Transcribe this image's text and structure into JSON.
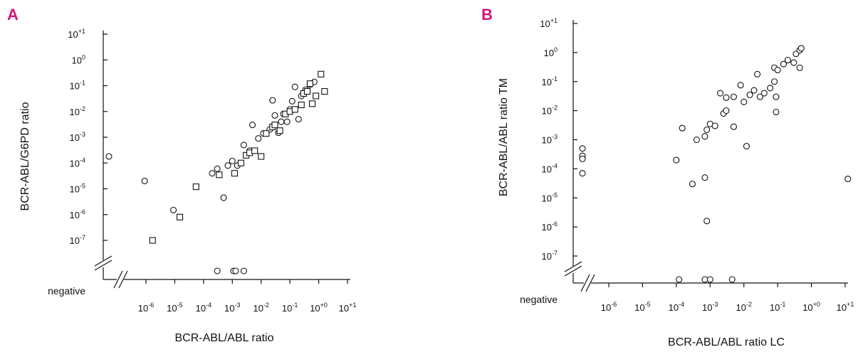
{
  "chart_data": [
    {
      "type": "scatter",
      "panel_label": "A",
      "panel_label_color": "#d4147a",
      "xlabel": "BCR-ABL/ABL ratio",
      "ylabel": "BCR-ABL/G6PD ratio",
      "x_scale": "log10",
      "y_scale": "log10",
      "x_ticks": [
        "10-6",
        "10-5",
        "10-4",
        "10-3",
        "10-2",
        "10-1",
        "10+0",
        "10+1"
      ],
      "y_ticks": [
        "10+1",
        "100",
        "10-1",
        "10-2",
        "10-3",
        "10-4",
        "10-5",
        "10-6",
        "10-7"
      ],
      "negative_label": "negative",
      "axis_break": true,
      "xlim": [
        "1e-6",
        "1e+1"
      ],
      "ylim": [
        "1e-7",
        "1e+1"
      ],
      "series": [
        {
          "marker": "circle",
          "points": [
            {
              "x": "negative",
              "y": 0.00018
            },
            {
              "x": 9e-07,
              "y": 2e-05
            },
            {
              "x": 9e-06,
              "y": 1.5e-06
            },
            {
              "x": 0.0002,
              "y": 4e-05
            },
            {
              "x": 0.0003,
              "y": 6e-05
            },
            {
              "x": 0.0005,
              "y": 4.5e-06
            },
            {
              "x": 0.0007,
              "y": 8e-05
            },
            {
              "x": 0.001,
              "y": 0.00012
            },
            {
              "x": 0.0015,
              "y": 8e-05
            },
            {
              "x": 0.0025,
              "y": 0.0005
            },
            {
              "x": 0.004,
              "y": 0.0003
            },
            {
              "x": 0.005,
              "y": 0.003
            },
            {
              "x": 0.008,
              "y": 0.0009
            },
            {
              "x": 0.012,
              "y": 0.0014
            },
            {
              "x": 0.02,
              "y": 0.002
            },
            {
              "x": 0.025,
              "y": 0.027
            },
            {
              "x": 0.03,
              "y": 0.007
            },
            {
              "x": 0.04,
              "y": 0.0015
            },
            {
              "x": 0.06,
              "y": 0.008
            },
            {
              "x": 0.08,
              "y": 0.004
            },
            {
              "x": 0.1,
              "y": 0.012
            },
            {
              "x": 0.12,
              "y": 0.025
            },
            {
              "x": 0.2,
              "y": 0.005
            },
            {
              "x": 0.25,
              "y": 0.04
            },
            {
              "x": 0.35,
              "y": 0.07
            },
            {
              "x": 0.5,
              "y": 0.11
            },
            {
              "x": 0.7,
              "y": 0.14
            },
            {
              "x": 0.15,
              "y": 0.09
            },
            {
              "x": 0.05,
              "y": 0.004
            },
            {
              "x": 0.0003,
              "y": "negative"
            },
            {
              "x": 0.0011,
              "y": "negative"
            },
            {
              "x": 0.0013,
              "y": "negative"
            },
            {
              "x": 0.0025,
              "y": "negative"
            }
          ]
        },
        {
          "marker": "square",
          "points": [
            {
              "x": 1.7e-06,
              "y": 1e-07
            },
            {
              "x": 1.5e-05,
              "y": 8e-07
            },
            {
              "x": 5.5e-05,
              "y": 1.2e-05
            },
            {
              "x": 0.00035,
              "y": 3.5e-05
            },
            {
              "x": 0.0012,
              "y": 4e-05
            },
            {
              "x": 0.002,
              "y": 0.0001
            },
            {
              "x": 0.003,
              "y": 0.0002
            },
            {
              "x": 0.004,
              "y": 0.00025
            },
            {
              "x": 0.006,
              "y": 0.0003
            },
            {
              "x": 0.01,
              "y": 0.00018
            },
            {
              "x": 0.015,
              "y": 0.0014
            },
            {
              "x": 0.025,
              "y": 0.0025
            },
            {
              "x": 0.03,
              "y": 0.003
            },
            {
              "x": 0.045,
              "y": 0.0018
            },
            {
              "x": 0.07,
              "y": 0.008
            },
            {
              "x": 0.1,
              "y": 0.01
            },
            {
              "x": 0.15,
              "y": 0.012
            },
            {
              "x": 0.25,
              "y": 0.018
            },
            {
              "x": 0.3,
              "y": 0.05
            },
            {
              "x": 0.4,
              "y": 0.06
            },
            {
              "x": 0.6,
              "y": 0.02
            },
            {
              "x": 0.8,
              "y": 0.04
            },
            {
              "x": 1.2,
              "y": 0.28
            },
            {
              "x": 1.6,
              "y": 0.06
            },
            {
              "x": 0.5,
              "y": 0.12
            }
          ]
        }
      ]
    },
    {
      "type": "scatter",
      "panel_label": "B",
      "panel_label_color": "#d4147a",
      "xlabel": "BCR-ABL/ABL ratio LC",
      "ylabel": "BCR-ABL/ABL ratio TM",
      "x_scale": "log10",
      "y_scale": "log10",
      "x_ticks": [
        "10-6",
        "10-5",
        "10-4",
        "10-3",
        "10-2",
        "10-1",
        "10+0",
        "10+1"
      ],
      "y_ticks": [
        "10+1",
        "100",
        "10-1",
        "10-2",
        "10-3",
        "10-4",
        "10-5",
        "10-6",
        "10-7"
      ],
      "negative_label": "negative",
      "axis_break": true,
      "xlim": [
        "1e-6",
        "1e+1"
      ],
      "ylim": [
        "1e-7",
        "1e+1"
      ],
      "series": [
        {
          "marker": "circle",
          "points": [
            {
              "x": "negative",
              "y": 0.0005
            },
            {
              "x": "negative",
              "y": 0.00028
            },
            {
              "x": "negative",
              "y": 0.00022
            },
            {
              "x": "negative",
              "y": 7e-05
            },
            {
              "x": 0.0001,
              "y": 0.0002
            },
            {
              "x": 0.00015,
              "y": 0.0025
            },
            {
              "x": 0.0003,
              "y": 3e-05
            },
            {
              "x": 0.0004,
              "y": 0.001
            },
            {
              "x": 0.0007,
              "y": 5e-05
            },
            {
              "x": 0.0008,
              "y": 1.6e-06
            },
            {
              "x": 0.0007,
              "y": 0.0013
            },
            {
              "x": 0.0008,
              "y": 0.0022
            },
            {
              "x": 0.001,
              "y": 0.0035
            },
            {
              "x": 0.0014,
              "y": 0.003
            },
            {
              "x": 0.0025,
              "y": 0.008
            },
            {
              "x": 0.003,
              "y": 0.01
            },
            {
              "x": 0.002,
              "y": 0.04
            },
            {
              "x": 0.003,
              "y": 0.028
            },
            {
              "x": 0.005,
              "y": 0.03
            },
            {
              "x": 0.005,
              "y": 0.0028
            },
            {
              "x": 0.012,
              "y": 0.0006
            },
            {
              "x": 0.01,
              "y": 0.02
            },
            {
              "x": 0.008,
              "y": 0.075
            },
            {
              "x": 0.015,
              "y": 0.035
            },
            {
              "x": 0.02,
              "y": 0.05
            },
            {
              "x": 0.025,
              "y": 0.18
            },
            {
              "x": 0.03,
              "y": 0.03
            },
            {
              "x": 0.04,
              "y": 0.04
            },
            {
              "x": 0.06,
              "y": 0.06
            },
            {
              "x": 0.08,
              "y": 0.1
            },
            {
              "x": 0.09,
              "y": 0.03
            },
            {
              "x": 0.09,
              "y": 0.009
            },
            {
              "x": 0.08,
              "y": 0.3
            },
            {
              "x": 0.1,
              "y": 0.25
            },
            {
              "x": 0.15,
              "y": 0.4
            },
            {
              "x": 0.2,
              "y": 0.55
            },
            {
              "x": 0.3,
              "y": 0.45
            },
            {
              "x": 0.35,
              "y": 0.9
            },
            {
              "x": 0.45,
              "y": 1.2
            },
            {
              "x": 0.5,
              "y": 1.4
            },
            {
              "x": 0.45,
              "y": 0.3
            },
            {
              "x": 12,
              "y": 4.5e-05
            },
            {
              "x": 0.00012,
              "y": "negative"
            },
            {
              "x": 0.0007,
              "y": "negative"
            },
            {
              "x": 0.001,
              "y": "negative"
            },
            {
              "x": 0.0045,
              "y": "negative"
            }
          ]
        }
      ]
    }
  ]
}
